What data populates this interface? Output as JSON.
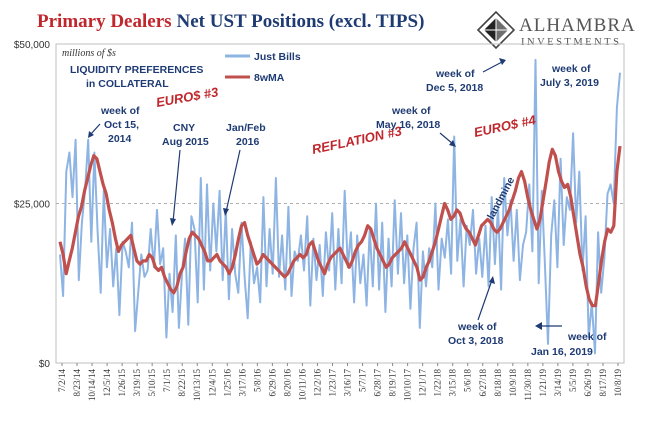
{
  "header": {
    "title_part1": "Primary Dealers",
    "title_part2": "Net UST Positions (excl. TIPS)",
    "logo_name": "ALHAMBRA",
    "logo_sub": "INVESTMENTS"
  },
  "colors": {
    "title_red": "#c0272d",
    "title_navy": "#1f3b73",
    "bills_line": "#8eb4e3",
    "ma_line": "#c0504d",
    "annotation": "#1f3b73",
    "annotation_red": "#c0272d"
  },
  "chart_data": {
    "type": "line",
    "title": "Primary Dealers Net UST Positions (excl. TIPS)",
    "units_label": "millions of $s",
    "ylim": [
      0,
      50000
    ],
    "y_ticks": [
      {
        "value": 0,
        "label": "$0"
      },
      {
        "value": 25000,
        "label": "$25,000"
      },
      {
        "value": 50000,
        "label": "$50,000"
      }
    ],
    "x_tick_labels": [
      "7/2/14",
      "8/23/14",
      "10/14/14",
      "12/5/14",
      "1/26/15",
      "3/19/15",
      "5/10/15",
      "7/1/15",
      "8/22/15",
      "10/13/15",
      "12/4/15",
      "1/25/16",
      "3/17/16",
      "5/8/16",
      "6/29/16",
      "8/20/16",
      "10/11/16",
      "12/2/16",
      "1/23/17",
      "3/16/17",
      "5/7/17",
      "6/28/17",
      "8/19/17",
      "10/10/17",
      "12/1/17",
      "1/22/18",
      "3/15/18",
      "5/6/18",
      "6/27/18",
      "8/18/18",
      "10/9/18",
      "11/30/18",
      "1/21/19",
      "3/14/19",
      "5/5/19",
      "6/26/19",
      "8/17/19",
      "10/8/19"
    ],
    "series": [
      {
        "name": "Just Bills",
        "values": [
          17000,
          10500,
          30000,
          33000,
          26000,
          35000,
          13000,
          22000,
          27000,
          35000,
          19000,
          33000,
          21000,
          11000,
          27000,
          15000,
          21000,
          12000,
          18000,
          7500,
          19000,
          17500,
          15000,
          22000,
          5000,
          11000,
          17000,
          13500,
          14500,
          21000,
          15000,
          24000,
          15500,
          18000,
          4000,
          14000,
          8000,
          20000,
          5500,
          14000,
          19500,
          6000,
          23000,
          21000,
          9500,
          29000,
          11500,
          28000,
          14500,
          25000,
          17500,
          27000,
          13000,
          24000,
          10000,
          21000,
          14000,
          11000,
          22000,
          13500,
          7000,
          19000,
          12500,
          15000,
          9500,
          26000,
          12000,
          21000,
          14000,
          29000,
          13500,
          20000,
          11500,
          24500,
          10500,
          17500,
          16000,
          20000,
          14500,
          23000,
          9000,
          19500,
          13000,
          18500,
          10500,
          20500,
          14500,
          23500,
          11500,
          21000,
          12500,
          27000,
          15000,
          20500,
          9500,
          20000,
          12500,
          17000,
          9000,
          21000,
          12000,
          25000,
          11500,
          22000,
          8000,
          19500,
          12000,
          25500,
          14000,
          23500,
          12500,
          20000,
          8500,
          18000,
          22000,
          5500,
          17500,
          12000,
          18000,
          15000,
          25000,
          11500,
          19500,
          16500,
          22500,
          14000,
          35500,
          16000,
          22500,
          12000,
          21500,
          18500,
          24000,
          14000,
          19500,
          13500,
          21500,
          12000,
          26000,
          15500,
          24500,
          11500,
          29000,
          20000,
          25500,
          16000,
          24000,
          13000,
          18500,
          20500,
          28000,
          17500,
          47500,
          12500,
          27000,
          15500,
          3000,
          20000,
          25500,
          15000,
          32000,
          18500,
          26000,
          24000,
          36000,
          22000,
          30000,
          14500,
          23000,
          4000,
          9500,
          1500,
          20500,
          11000,
          16500,
          26500,
          28000,
          25000,
          40000,
          45500
        ]
      },
      {
        "name": "8wMA",
        "values": [
          19000,
          17000,
          14000,
          16000,
          18000,
          20500,
          23000,
          24500,
          27000,
          29000,
          31000,
          32500,
          32000,
          30000,
          28000,
          26500,
          24000,
          22000,
          19500,
          17500,
          18500,
          19000,
          19500,
          20000,
          18000,
          16000,
          15500,
          16000,
          16000,
          17000,
          16500,
          15000,
          14500,
          15000,
          13500,
          12500,
          11500,
          11000,
          12000,
          14000,
          15000,
          17500,
          19500,
          20500,
          20000,
          19500,
          18500,
          17500,
          16000,
          16000,
          16500,
          17000,
          16000,
          15500,
          15000,
          14000,
          15000,
          17000,
          19500,
          21500,
          22000,
          20000,
          18500,
          17000,
          15500,
          16000,
          17000,
          16500,
          16000,
          15500,
          15000,
          14500,
          14000,
          13500,
          14000,
          15000,
          16000,
          16500,
          17000,
          16500,
          17000,
          18500,
          19000,
          17500,
          16000,
          15000,
          14000,
          15500,
          16500,
          17000,
          17500,
          18000,
          17000,
          16000,
          15000,
          16000,
          17500,
          18500,
          19000,
          20000,
          21500,
          21000,
          19500,
          18000,
          17000,
          16000,
          15000,
          15500,
          16500,
          17000,
          17500,
          18000,
          19000,
          18000,
          17000,
          16000,
          15000,
          13000,
          13500,
          15000,
          16000,
          17500,
          19000,
          21000,
          23000,
          25000,
          24000,
          22500,
          23000,
          24000,
          23500,
          22000,
          21000,
          20500,
          19500,
          18500,
          20000,
          21500,
          22000,
          22500,
          22000,
          21000,
          20500,
          21000,
          22000,
          23000,
          24000,
          25500,
          27000,
          29000,
          30000,
          28500,
          26000,
          24000,
          22500,
          21000,
          22500,
          25500,
          28500,
          31500,
          33500,
          32500,
          30000,
          28500,
          27500,
          28000,
          26000,
          23000,
          20000,
          17000,
          15000,
          12000,
          10000,
          9000,
          9000,
          12500,
          16000,
          19000,
          21000,
          20500,
          21500,
          30000,
          34000
        ]
      }
    ],
    "legend": [
      {
        "label": "Just Bills",
        "position": "top-center"
      },
      {
        "label": "8wMA",
        "position": "top-center"
      }
    ],
    "annotations": {
      "liquidity_line1": "LIQUIDITY PREFERENCES",
      "liquidity_line2": "in COLLATERAL",
      "oct2014_line1": "week of",
      "oct2014_line2": "Oct 15,",
      "oct2014_line3": "2014",
      "euro3": "EURO$ #3",
      "cny_line1": "CNY",
      "cny_line2": "Aug 2015",
      "janfeb_line1": "Jan/Feb",
      "janfeb_line2": "2016",
      "reflation": "REFLATION #3",
      "may2018_line1": "week of",
      "may2018_line2": "May 16, 2018",
      "euro4": "EURO$ #4",
      "dec2018_line1": "week of",
      "dec2018_line2": "Dec 5, 2018",
      "jul2019_line1": "week of",
      "jul2019_line2": "July 3, 2019",
      "landmine": "landmine",
      "oct2018_line1": "week of",
      "oct2018_line2": "Oct 3, 2018",
      "jan2019_line1": "week of",
      "jan2019_line2": "Jan 16, 2019"
    }
  }
}
